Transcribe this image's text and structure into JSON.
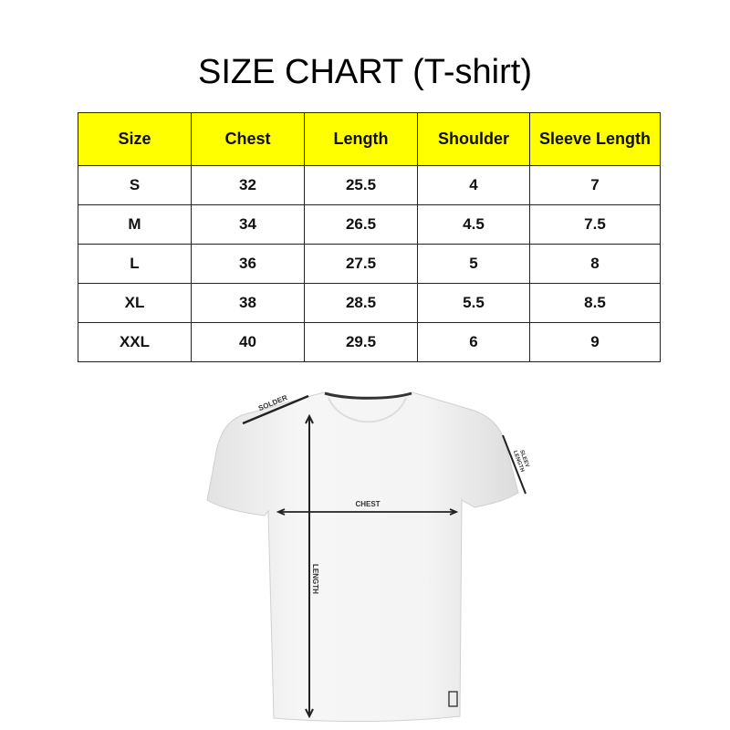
{
  "title": "SIZE CHART (T-shirt)",
  "table": {
    "headers": [
      "Size",
      "Chest",
      "Length",
      "Shoulder",
      "Sleeve Length"
    ],
    "rows": [
      [
        "S",
        "32",
        "25.5",
        "4",
        "7"
      ],
      [
        "M",
        "34",
        "26.5",
        "4.5",
        "7.5"
      ],
      [
        "L",
        "36",
        "27.5",
        "5",
        "8"
      ],
      [
        "XL",
        "38",
        "28.5",
        "5.5",
        "8.5"
      ],
      [
        "XXL",
        "40",
        "29.5",
        "6",
        "9"
      ]
    ]
  },
  "diagram": {
    "shoulder_label": "SOLDER",
    "chest_label": "CHEST",
    "length_label": "LENGTH",
    "sleeve_label_1": "SLEEV",
    "sleeve_label_2": "LENGTH"
  },
  "colors": {
    "header_bg": "#ffff00"
  }
}
